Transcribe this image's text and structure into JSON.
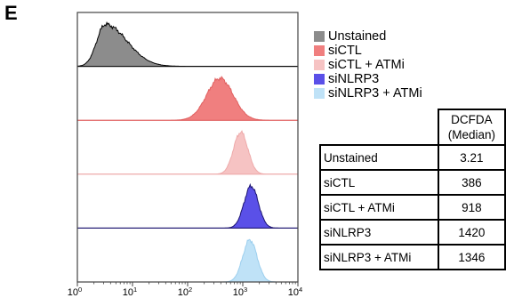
{
  "panel_letter": "E",
  "chart_data": {
    "type": "area",
    "subtype": "stacked-flow-cytometry-histograms",
    "xscale": "log",
    "xlim": [
      1,
      10000
    ],
    "xticks": [
      {
        "base": "10",
        "exp": "0",
        "value": 1
      },
      {
        "base": "10",
        "exp": "1",
        "value": 10
      },
      {
        "base": "10",
        "exp": "2",
        "value": 100
      },
      {
        "base": "10",
        "exp": "3",
        "value": 1000
      },
      {
        "base": "10",
        "exp": "4",
        "value": 10000
      }
    ],
    "series": [
      {
        "name": "Unstained",
        "color": "#8c8c8c",
        "stroke": "#000000",
        "median": 3.21,
        "spread": 0.28
      },
      {
        "name": "siCTL",
        "color": "#f07f7f",
        "stroke": "#e06060",
        "median": 386,
        "spread": 0.24
      },
      {
        "name": "siCTL + ATMi",
        "color": "#f6c3c3",
        "stroke": "#eeaaaa",
        "median": 918,
        "spread": 0.13
      },
      {
        "name": "siNLRP3",
        "color": "#5a50e8",
        "stroke": "#1c1470",
        "median": 1420,
        "spread": 0.13
      },
      {
        "name": "siNLRP3 + ATMi",
        "color": "#bfe2f7",
        "stroke": "#9ccfee",
        "median": 1346,
        "spread": 0.13
      }
    ],
    "legend": [
      "Unstained",
      "siCTL",
      "siCTL + ATMi",
      "siNLRP3",
      "siNLRP3 + ATMi"
    ],
    "legend_position": "right"
  },
  "table": {
    "header_line1": "DCFDA",
    "header_line2": "(Median)",
    "rows": [
      {
        "label": "Unstained",
        "value": "3.21"
      },
      {
        "label": "siCTL",
        "value": "386"
      },
      {
        "label": "siCTL + ATMi",
        "value": "918"
      },
      {
        "label": "siNLRP3",
        "value": "1420"
      },
      {
        "label": "siNLRP3 + ATMi",
        "value": "1346"
      }
    ]
  }
}
